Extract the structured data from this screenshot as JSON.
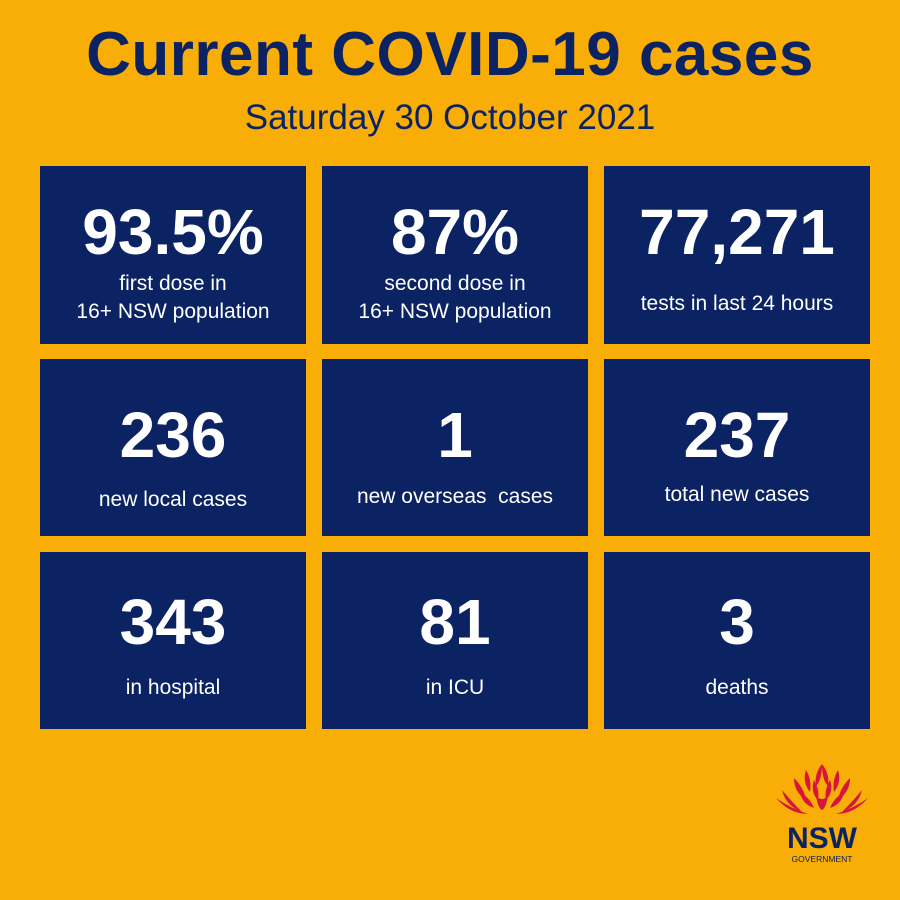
{
  "header": {
    "title": "Current COVID-19 cases",
    "date": "Saturday 30 October 2021"
  },
  "colors": {
    "background": "#f8ae06",
    "card": "#0b2263",
    "card_text": "#ffffff",
    "title_text": "#0b2263",
    "logo_red": "#d7153a"
  },
  "stats": [
    {
      "value": "93.5%",
      "label_line1": "first dose in",
      "label_line2": "16+ NSW population"
    },
    {
      "value": "87%",
      "label_line1": "second dose in",
      "label_line2": "16+ NSW population"
    },
    {
      "value": "77,271",
      "label_line1": "tests in last 24 hours"
    },
    {
      "value": "236",
      "label_line1": "new local cases"
    },
    {
      "value": "1",
      "label_line1": "new overseas  cases"
    },
    {
      "value": "237",
      "label_line1": "total new cases"
    },
    {
      "value": "343",
      "label_line1": "in hospital"
    },
    {
      "value": "81",
      "label_line1": "in ICU"
    },
    {
      "value": "3",
      "label_line1": "deaths"
    }
  ],
  "logo": {
    "icon": "waratah-flower-icon",
    "name": "NSW",
    "subtext": "GOVERNMENT"
  }
}
